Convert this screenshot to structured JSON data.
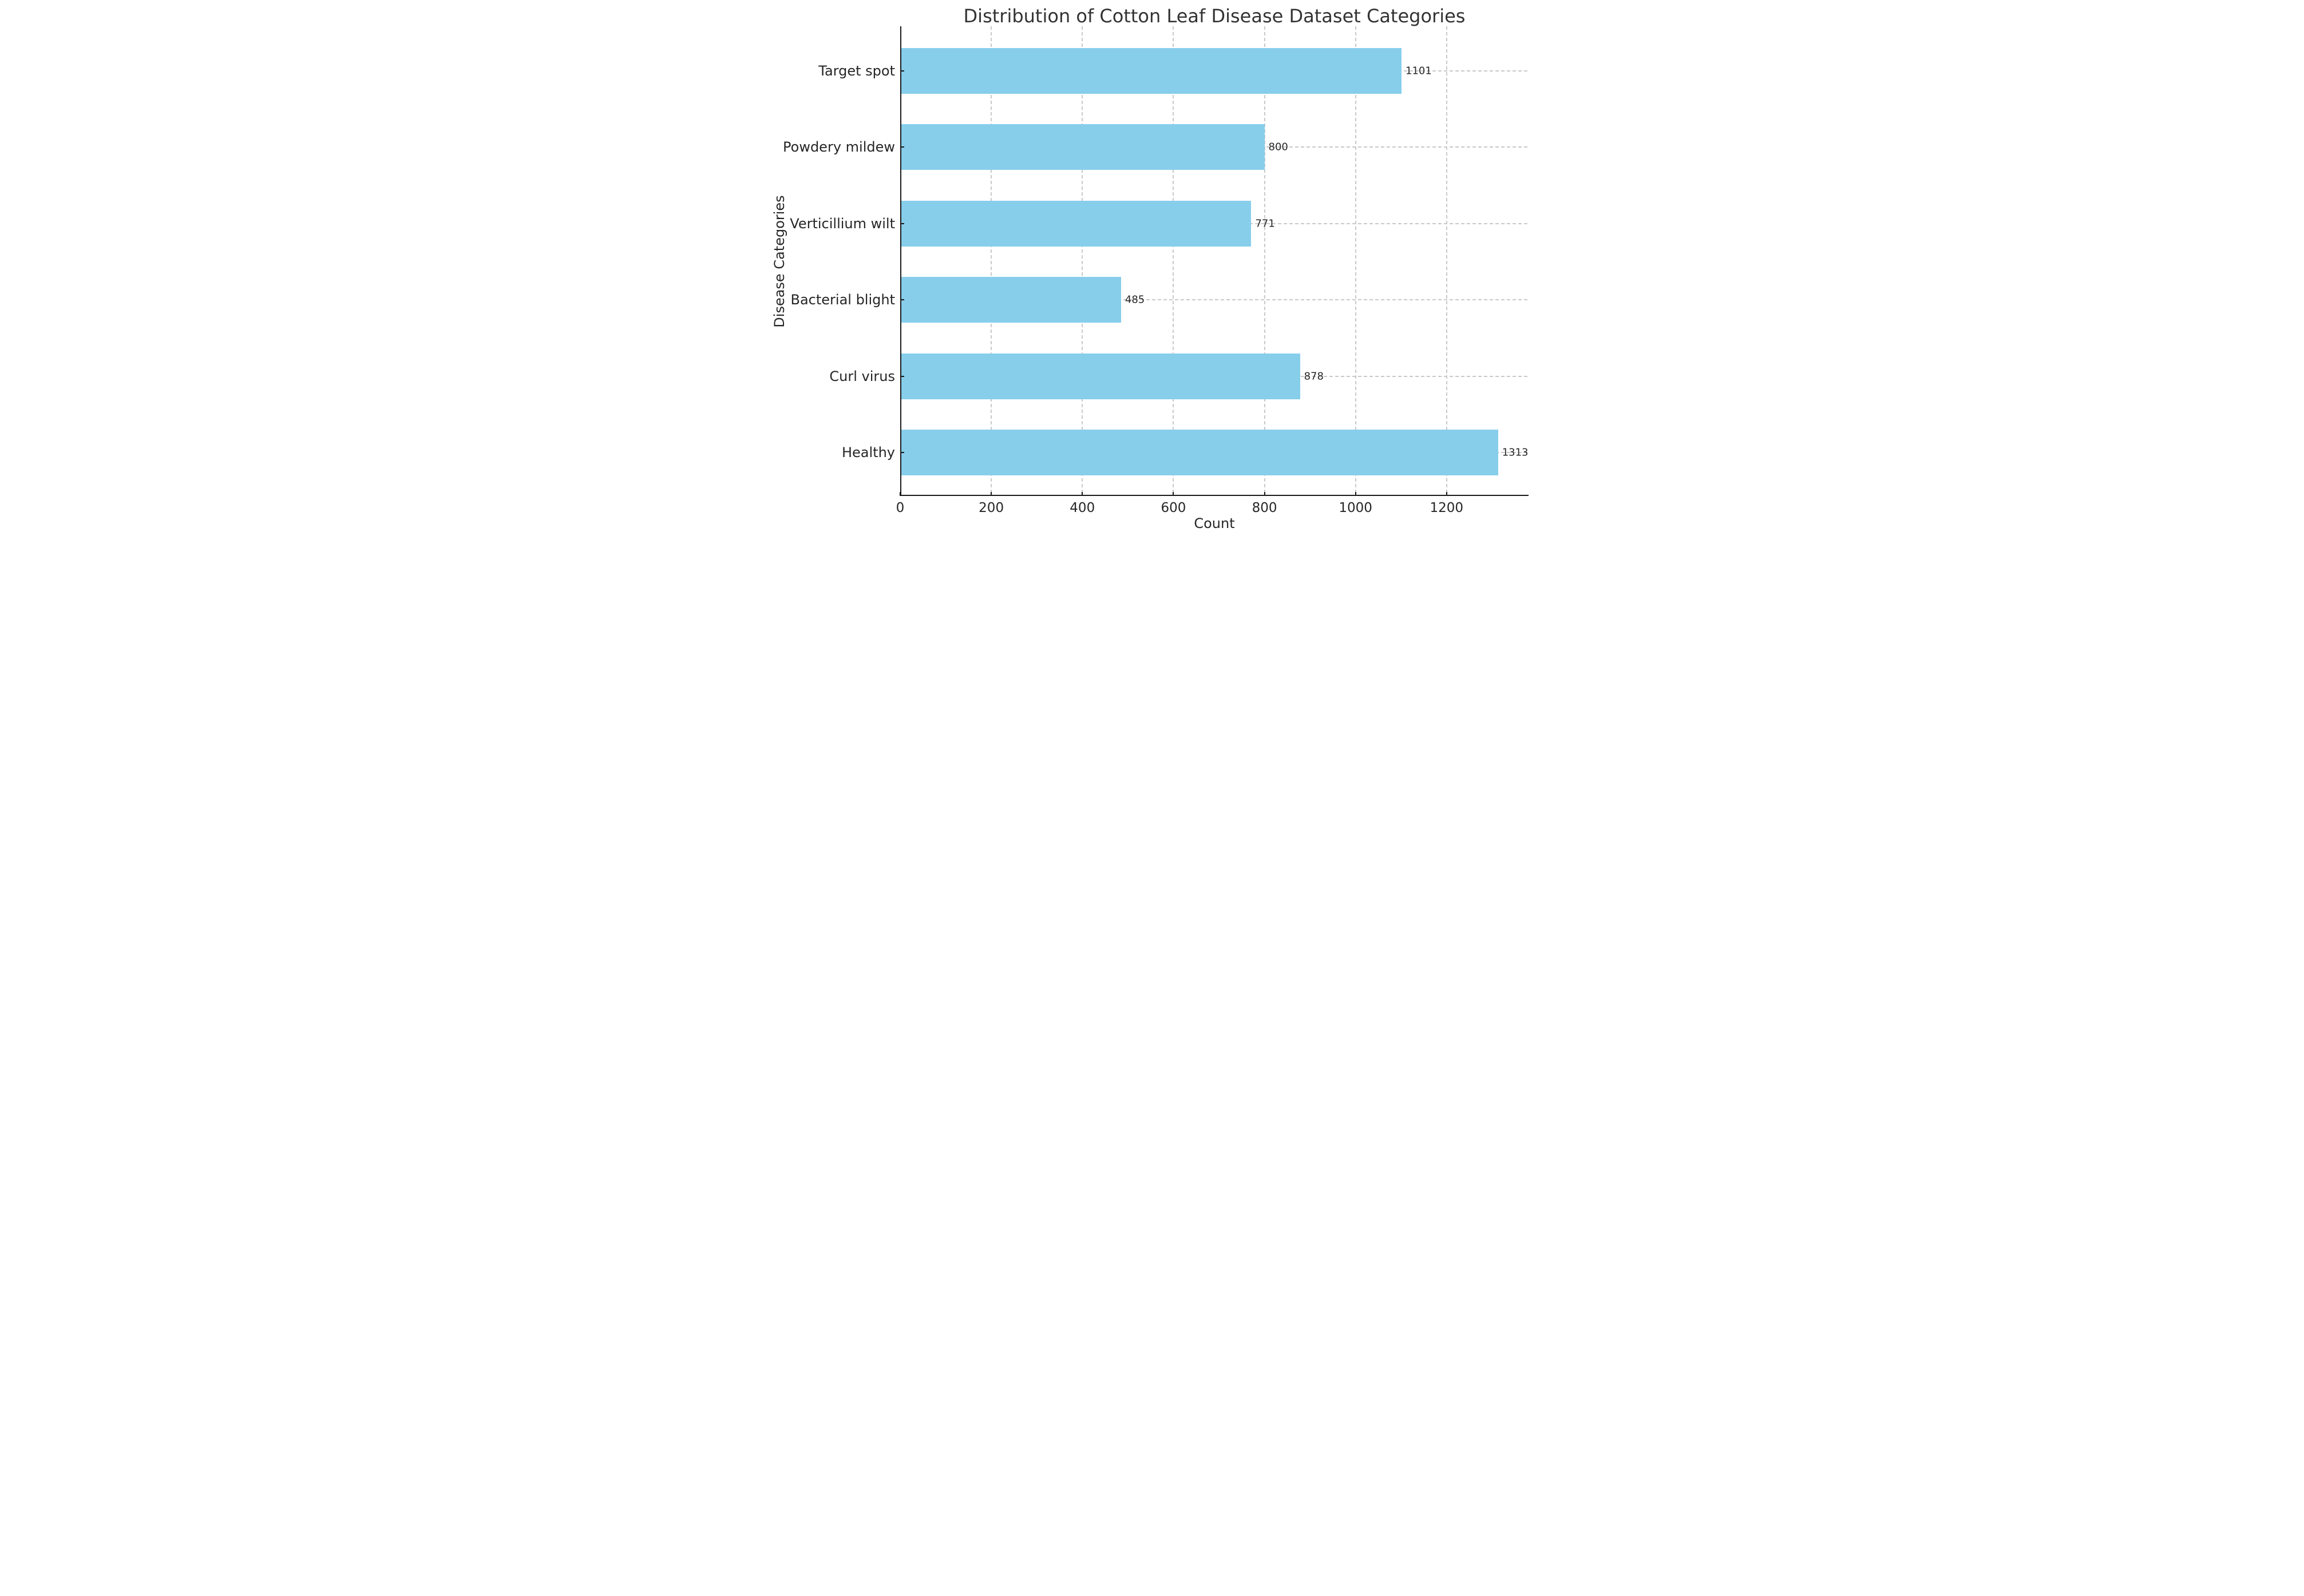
{
  "chart_data": {
    "type": "bar",
    "orientation": "horizontal",
    "title": "Distribution of Cotton Leaf Disease Dataset Categories",
    "xlabel": "Count",
    "ylabel": "Disease Categories",
    "categories": [
      "Target spot",
      "Powdery mildew",
      "Verticillium wilt",
      "Bacterial blight",
      "Curl virus",
      "Healthy"
    ],
    "values": [
      1101,
      800,
      771,
      485,
      878,
      1313
    ],
    "value_labels_visible": true,
    "xticks": [
      0,
      200,
      400,
      600,
      800,
      1000,
      1200
    ],
    "xlim": [
      0,
      1380
    ],
    "ylim": [
      -0.57,
      5.585
    ],
    "bar_thickness": 0.6,
    "bar_color": "#87CEEB",
    "grid": {
      "visible": true,
      "style": "dashed",
      "color": "#c9c9c9"
    },
    "spines": [
      "left",
      "bottom"
    ],
    "tick_direction": "in",
    "background_color": "#ffffff",
    "legend": "none"
  }
}
